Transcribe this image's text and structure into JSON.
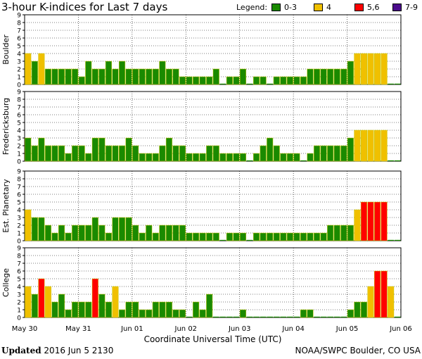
{
  "title": "3-hour K-indices for Last 7 days",
  "legend": {
    "label": "Legend:",
    "items": [
      {
        "text": "0-3",
        "color": "#1a8a00"
      },
      {
        "text": "4",
        "color": "#f0c000"
      },
      {
        "text": "5,6",
        "color": "#ff0000"
      },
      {
        "text": "7-9",
        "color": "#4b0c8c"
      }
    ]
  },
  "footer": {
    "updated_label": "Updated",
    "updated_value": "2016 Jun  5 2130",
    "source": "NOAA/SWPC Boulder, CO USA"
  },
  "chart_data": {
    "type": "bar",
    "xlabel": "Coordinate Universal Time (UTC)",
    "x_tick_labels": [
      "May 30",
      "May 31",
      "Jun 01",
      "Jun 02",
      "Jun 03",
      "Jun 04",
      "Jun 05",
      "Jun 06"
    ],
    "bins_per_day": 8,
    "ylim": [
      0,
      9
    ],
    "y_ticks": [
      0,
      1,
      2,
      3,
      4,
      5,
      6,
      7,
      8,
      9
    ],
    "grid": true,
    "panels": [
      {
        "name": "Boulder",
        "values": [
          4,
          3,
          4,
          2,
          2,
          2,
          2,
          2,
          1,
          3,
          2,
          2,
          3,
          2,
          3,
          2,
          2,
          2,
          2,
          2,
          3,
          2,
          2,
          1,
          1,
          1,
          1,
          1,
          2,
          0,
          1,
          1,
          2,
          0,
          1,
          1,
          0,
          1,
          1,
          1,
          1,
          1,
          2,
          2,
          2,
          2,
          2,
          2,
          3,
          4,
          4,
          4,
          4,
          4,
          0,
          0
        ]
      },
      {
        "name": "Fredericksburg",
        "values": [
          3,
          2,
          3,
          2,
          2,
          2,
          1,
          2,
          2,
          1,
          3,
          3,
          2,
          2,
          2,
          3,
          2,
          1,
          1,
          1,
          2,
          3,
          2,
          2,
          1,
          1,
          1,
          2,
          2,
          1,
          1,
          1,
          1,
          0,
          1,
          2,
          3,
          2,
          1,
          1,
          1,
          0,
          1,
          2,
          2,
          2,
          2,
          2,
          3,
          4,
          4,
          4,
          4,
          4,
          0,
          0
        ]
      },
      {
        "name": "Est. Planetary",
        "values": [
          4,
          3,
          3,
          2,
          1,
          2,
          1,
          2,
          2,
          2,
          3,
          2,
          1,
          3,
          3,
          3,
          2,
          1,
          2,
          1,
          2,
          2,
          2,
          2,
          1,
          1,
          1,
          1,
          1,
          0,
          1,
          1,
          1,
          0,
          1,
          1,
          1,
          1,
          1,
          1,
          1,
          1,
          1,
          1,
          1,
          2,
          2,
          2,
          2,
          4,
          5,
          5,
          5,
          5,
          0,
          0
        ]
      },
      {
        "name": "College",
        "values": [
          4,
          3,
          5,
          4,
          2,
          3,
          1,
          2,
          2,
          2,
          5,
          3,
          2,
          4,
          1,
          2,
          2,
          1,
          1,
          2,
          2,
          2,
          1,
          1,
          0,
          2,
          1,
          3,
          0,
          0,
          0,
          0,
          1,
          0,
          0,
          0,
          0,
          0,
          0,
          0,
          0,
          1,
          1,
          0,
          0,
          0,
          0,
          0,
          1,
          2,
          2,
          4,
          6,
          6,
          4,
          0
        ]
      }
    ]
  }
}
